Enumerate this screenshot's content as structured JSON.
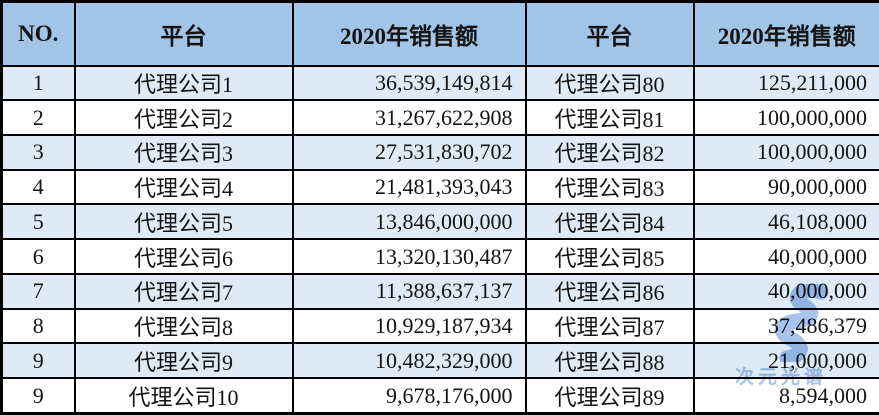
{
  "colors": {
    "header_bg": "#A2C4E6",
    "row_alt_bg": "#DEEBF7",
    "row_bg": "#FFFFFF",
    "border": "#000000",
    "text": "#141414",
    "watermark": "#5E93D8"
  },
  "table": {
    "columns": [
      "NO.",
      "平台",
      "2020年销售额",
      "平台",
      "2020年销售额"
    ],
    "rows": [
      [
        "1",
        "代理公司1",
        "36,539,149,814",
        "代理公司80",
        "125,211,000"
      ],
      [
        "2",
        "代理公司2",
        "31,267,622,908",
        "代理公司81",
        "100,000,000"
      ],
      [
        "3",
        "代理公司3",
        "27,531,830,702",
        "代理公司82",
        "100,000,000"
      ],
      [
        "4",
        "代理公司4",
        "21,481,393,043",
        "代理公司83",
        "90,000,000"
      ],
      [
        "5",
        "代理公司5",
        "13,846,000,000",
        "代理公司84",
        "46,108,000"
      ],
      [
        "6",
        "代理公司6",
        "13,320,130,487",
        "代理公司85",
        "40,000,000"
      ],
      [
        "7",
        "代理公司7",
        "11,388,637,137",
        "代理公司86",
        "40,000,000"
      ],
      [
        "8",
        "代理公司8",
        "10,929,187,934",
        "代理公司87",
        "37,486,379"
      ],
      [
        "9",
        "代理公司9",
        "10,482,329,000",
        "代理公司88",
        "21,000,000"
      ],
      [
        "9",
        "代理公司10",
        "9,678,176,000",
        "代理公司89",
        "8,594,000"
      ]
    ]
  },
  "watermark": {
    "text": "次元光谱"
  },
  "chart_data": {
    "type": "table",
    "columns": [
      "NO.",
      "平台",
      "2020年销售额",
      "平台",
      "2020年销售额"
    ],
    "rows": [
      [
        "1",
        "代理公司1",
        36539149814,
        "代理公司80",
        125211000
      ],
      [
        "2",
        "代理公司2",
        31267622908,
        "代理公司81",
        100000000
      ],
      [
        "3",
        "代理公司3",
        27531830702,
        "代理公司82",
        100000000
      ],
      [
        "4",
        "代理公司4",
        21481393043,
        "代理公司83",
        90000000
      ],
      [
        "5",
        "代理公司5",
        13846000000,
        "代理公司84",
        46108000
      ],
      [
        "6",
        "代理公司6",
        13320130487,
        "代理公司85",
        40000000
      ],
      [
        "7",
        "代理公司7",
        11388637137,
        "代理公司86",
        40000000
      ],
      [
        "8",
        "代理公司8",
        10929187934,
        "代理公司87",
        37486379
      ],
      [
        "9",
        "代理公司9",
        10482329000,
        "代理公司88",
        21000000
      ],
      [
        "9",
        "代理公司10",
        9678176000,
        "代理公司89",
        8594000
      ]
    ],
    "layout_hints": {
      "zebra_striping": "odd data rows light blue, even rows white",
      "alignment": [
        "center",
        "center",
        "right",
        "center",
        "right"
      ]
    }
  }
}
